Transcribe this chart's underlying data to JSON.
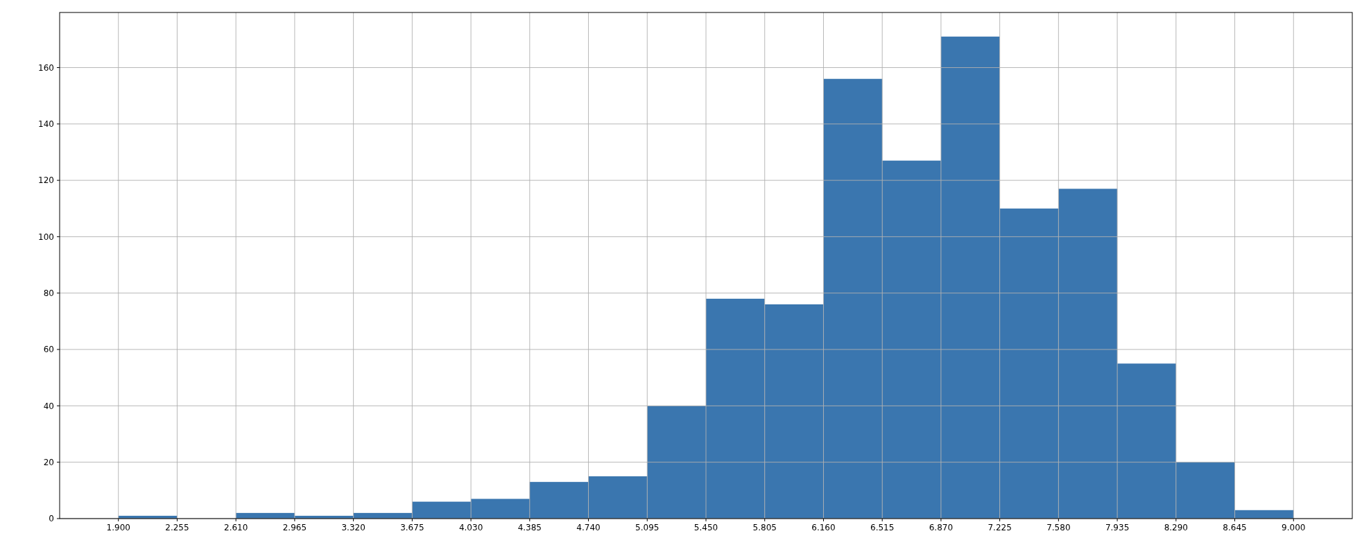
{
  "chart_data": {
    "type": "histogram",
    "color": "#3a76af",
    "bins": [
      1.9,
      2.255,
      2.61,
      2.965,
      3.32,
      3.675,
      4.03,
      4.385,
      4.74,
      5.095,
      5.45,
      5.805,
      6.16,
      6.515,
      6.87,
      7.225,
      7.58,
      7.935,
      8.29,
      8.645,
      9.0
    ],
    "values": [
      1,
      0,
      2,
      1,
      2,
      6,
      7,
      13,
      15,
      40,
      78,
      76,
      156,
      127,
      171,
      110,
      117,
      55,
      20,
      3
    ],
    "xlim": [
      1.545,
      9.355
    ],
    "xticks": [
      {
        "value": 1.9,
        "label": "1.900"
      },
      {
        "value": 2.255,
        "label": "2.255"
      },
      {
        "value": 2.61,
        "label": "2.610"
      },
      {
        "value": 2.965,
        "label": "2.965"
      },
      {
        "value": 3.32,
        "label": "3.320"
      },
      {
        "value": 3.675,
        "label": "3.675"
      },
      {
        "value": 4.03,
        "label": "4.030"
      },
      {
        "value": 4.385,
        "label": "4.385"
      },
      {
        "value": 4.74,
        "label": "4.740"
      },
      {
        "value": 5.095,
        "label": "5.095"
      },
      {
        "value": 5.45,
        "label": "5.450"
      },
      {
        "value": 5.805,
        "label": "5.805"
      },
      {
        "value": 6.16,
        "label": "6.160"
      },
      {
        "value": 6.515,
        "label": "6.515"
      },
      {
        "value": 6.87,
        "label": "6.870"
      },
      {
        "value": 7.225,
        "label": "7.225"
      },
      {
        "value": 7.58,
        "label": "7.580"
      },
      {
        "value": 7.935,
        "label": "7.935"
      },
      {
        "value": 8.29,
        "label": "8.290"
      },
      {
        "value": 8.645,
        "label": "8.645"
      },
      {
        "value": 9.0,
        "label": "9.000"
      }
    ],
    "ylim": [
      0,
      179.55
    ],
    "yticks": [
      0,
      20,
      40,
      60,
      80,
      100,
      120,
      140,
      160
    ],
    "grid": true
  }
}
